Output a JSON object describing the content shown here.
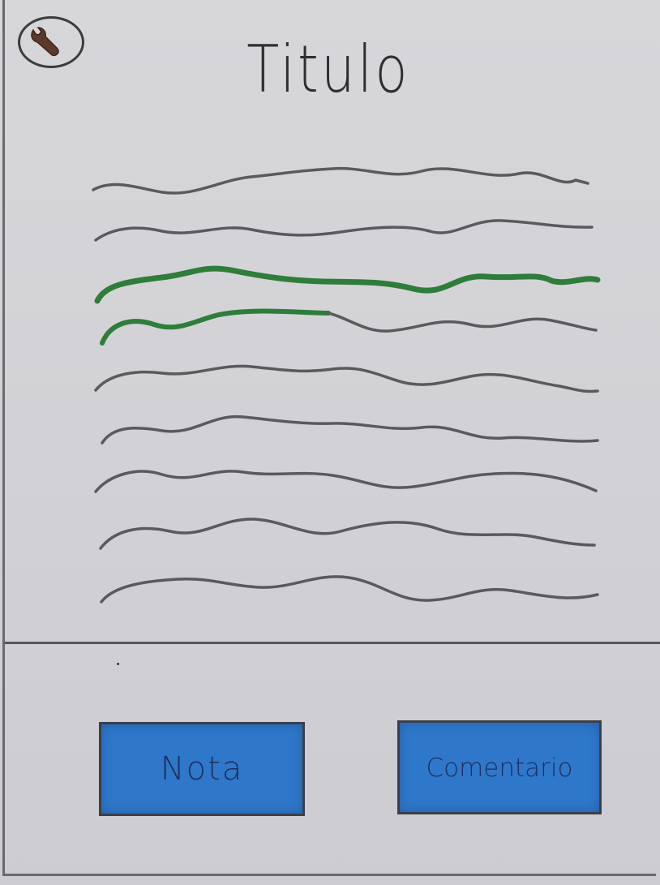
{
  "header": {
    "title": "Titulo",
    "settings_icon": "wrench-icon"
  },
  "content": {
    "placeholder_lines": 9,
    "highlighted_lines": [
      3,
      4
    ],
    "highlight_color": "#2f7d3a",
    "text_line_color": "#5a5a5e"
  },
  "actions": {
    "nota_label": "Nota",
    "comentario_label": "Comentario",
    "button_color": "#2f78c9"
  }
}
